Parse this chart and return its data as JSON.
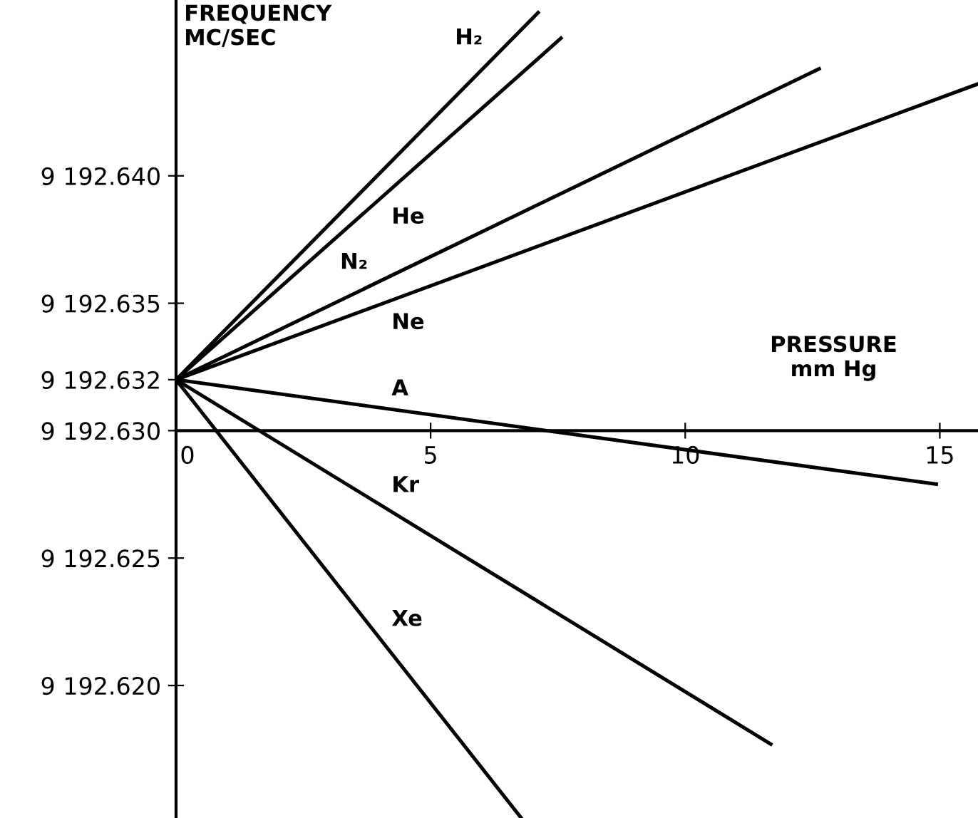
{
  "chart_data": {
    "type": "line",
    "xlabel": "PRESSURE\nmm Hg",
    "ylabel": "FREQUENCY\nMC/SEC",
    "series": [
      {
        "name": "H₂",
        "color": "#000000",
        "x": [
          0,
          7.11
        ],
        "values": [
          9192.632,
          9192.6464
        ]
      },
      {
        "name": "He",
        "color": "#000000",
        "x": [
          0,
          7.56
        ],
        "values": [
          9192.632,
          9192.6454
        ]
      },
      {
        "name": "N₂",
        "color": "#000000",
        "x": [
          0,
          12.63
        ],
        "values": [
          9192.632,
          9192.6442
        ]
      },
      {
        "name": "Ne",
        "color": "#000000",
        "x": [
          0,
          15.74
        ],
        "values": [
          9192.632,
          9192.6436
        ]
      },
      {
        "name": "A",
        "color": "#000000",
        "x": [
          0,
          14.93
        ],
        "values": [
          9192.632,
          9192.6279
        ]
      },
      {
        "name": "Kr",
        "color": "#000000",
        "x": [
          0,
          11.68
        ],
        "values": [
          9192.632,
          9192.6177
        ]
      },
      {
        "name": "Xe",
        "color": "#000000",
        "x": [
          0,
          6.78
        ],
        "values": [
          9192.632,
          9192.6148
        ]
      }
    ],
    "xlim": [
      0,
      15.75
    ],
    "ylim": [
      9192.6148,
      9192.6469
    ],
    "xticks": [
      0,
      5,
      10,
      15
    ],
    "yticks": [
      {
        "value": 9192.62,
        "label": "9 192.620"
      },
      {
        "value": 9192.625,
        "label": "9 192.625"
      },
      {
        "value": 9192.63,
        "label": "9 192.630"
      },
      {
        "value": 9192.632,
        "label": "9 192.632"
      },
      {
        "value": 9192.635,
        "label": "9 192.635"
      },
      {
        "value": 9192.64,
        "label": "9 192.640"
      }
    ],
    "grid": false,
    "legend": false,
    "marker": "none",
    "line_style": "solid"
  }
}
